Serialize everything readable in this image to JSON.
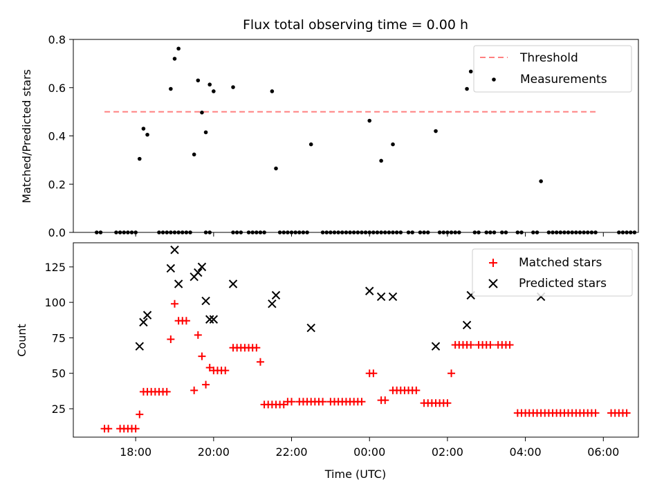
{
  "chart_data": [
    {
      "type": "scatter",
      "title": "Flux total observing time = 0.00 h",
      "ylabel": "Matched/Predicted stars",
      "xlabel": "",
      "ylim": [
        0,
        0.8
      ],
      "yticks": [
        "0.0",
        "0.2",
        "0.4",
        "0.6",
        "0.8"
      ],
      "legend": "top-right",
      "threshold": {
        "name": "Threshold",
        "value": 0.5,
        "x_range": [
          "17:12",
          "05:48"
        ],
        "color": "#ff7f7f"
      },
      "series": [
        {
          "name": "Measurements",
          "color": "#000000",
          "points": [
            [
              "18:06",
              0.305
            ],
            [
              "18:12",
              0.43
            ],
            [
              "18:18",
              0.405
            ],
            [
              "18:54",
              0.595
            ],
            [
              "19:00",
              0.72
            ],
            [
              "19:06",
              0.762
            ],
            [
              "19:30",
              0.323
            ],
            [
              "19:36",
              0.63
            ],
            [
              "19:42",
              0.497
            ],
            [
              "19:48",
              0.415
            ],
            [
              "19:54",
              0.613
            ],
            [
              "20:00",
              0.585
            ],
            [
              "20:30",
              0.602
            ],
            [
              "21:30",
              0.585
            ],
            [
              "21:36",
              0.265
            ],
            [
              "22:30",
              0.365
            ],
            [
              "00:00",
              0.463
            ],
            [
              "00:18",
              0.297
            ],
            [
              "00:36",
              0.365
            ],
            [
              "01:42",
              0.42
            ],
            [
              "02:30",
              0.595
            ],
            [
              "02:36",
              0.667
            ],
            [
              "04:24",
              0.212
            ],
            [
              "17:00",
              0
            ],
            [
              "17:06",
              0
            ],
            [
              "17:30",
              0
            ],
            [
              "17:36",
              0
            ],
            [
              "17:42",
              0
            ],
            [
              "17:48",
              0
            ],
            [
              "17:54",
              0
            ],
            [
              "18:00",
              0
            ],
            [
              "18:36",
              0
            ],
            [
              "18:42",
              0
            ],
            [
              "18:48",
              0
            ],
            [
              "18:54",
              0
            ],
            [
              "19:00",
              0
            ],
            [
              "19:06",
              0
            ],
            [
              "19:12",
              0
            ],
            [
              "19:18",
              0
            ],
            [
              "19:24",
              0
            ],
            [
              "19:48",
              0
            ],
            [
              "19:54",
              0
            ],
            [
              "20:30",
              0
            ],
            [
              "20:36",
              0
            ],
            [
              "20:42",
              0
            ],
            [
              "20:54",
              0
            ],
            [
              "21:00",
              0
            ],
            [
              "21:06",
              0
            ],
            [
              "21:12",
              0
            ],
            [
              "21:18",
              0
            ],
            [
              "21:42",
              0
            ],
            [
              "21:48",
              0
            ],
            [
              "21:54",
              0
            ],
            [
              "22:00",
              0
            ],
            [
              "22:06",
              0
            ],
            [
              "22:12",
              0
            ],
            [
              "22:18",
              0
            ],
            [
              "22:24",
              0
            ],
            [
              "22:48",
              0
            ],
            [
              "22:54",
              0
            ],
            [
              "23:00",
              0
            ],
            [
              "23:06",
              0
            ],
            [
              "23:12",
              0
            ],
            [
              "23:18",
              0
            ],
            [
              "23:24",
              0
            ],
            [
              "23:30",
              0
            ],
            [
              "23:36",
              0
            ],
            [
              "23:42",
              0
            ],
            [
              "23:48",
              0
            ],
            [
              "23:54",
              0
            ],
            [
              "00:00",
              0
            ],
            [
              "00:06",
              0
            ],
            [
              "00:12",
              0
            ],
            [
              "00:18",
              0
            ],
            [
              "00:24",
              0
            ],
            [
              "00:30",
              0
            ],
            [
              "00:36",
              0
            ],
            [
              "00:42",
              0
            ],
            [
              "00:48",
              0
            ],
            [
              "01:00",
              0
            ],
            [
              "01:06",
              0
            ],
            [
              "01:18",
              0
            ],
            [
              "01:24",
              0
            ],
            [
              "01:30",
              0
            ],
            [
              "01:48",
              0
            ],
            [
              "01:54",
              0
            ],
            [
              "02:00",
              0
            ],
            [
              "02:06",
              0
            ],
            [
              "02:12",
              0
            ],
            [
              "02:18",
              0
            ],
            [
              "02:42",
              0
            ],
            [
              "02:48",
              0
            ],
            [
              "03:00",
              0
            ],
            [
              "03:06",
              0
            ],
            [
              "03:12",
              0
            ],
            [
              "03:24",
              0
            ],
            [
              "03:30",
              0
            ],
            [
              "03:48",
              0
            ],
            [
              "03:54",
              0
            ],
            [
              "04:12",
              0
            ],
            [
              "04:18",
              0
            ],
            [
              "04:36",
              0
            ],
            [
              "04:42",
              0
            ],
            [
              "04:48",
              0
            ],
            [
              "04:54",
              0
            ],
            [
              "05:00",
              0
            ],
            [
              "05:06",
              0
            ],
            [
              "05:12",
              0
            ],
            [
              "05:18",
              0
            ],
            [
              "05:24",
              0
            ],
            [
              "05:30",
              0
            ],
            [
              "05:36",
              0
            ],
            [
              "05:42",
              0
            ],
            [
              "05:48",
              0
            ],
            [
              "06:24",
              0
            ],
            [
              "06:30",
              0
            ],
            [
              "06:36",
              0
            ],
            [
              "06:42",
              0
            ],
            [
              "06:48",
              0
            ]
          ]
        }
      ]
    },
    {
      "type": "scatter",
      "title": "",
      "ylabel": "Count",
      "xlabel": "Time (UTC)",
      "ylim": [
        5,
        142
      ],
      "yticks": [
        "25",
        "50",
        "75",
        "100",
        "125"
      ],
      "xticks": [
        "18:00",
        "20:00",
        "22:00",
        "00:00",
        "02:00",
        "04:00",
        "06:00"
      ],
      "xlim": [
        "16:24",
        "06:54"
      ],
      "legend": "top-right",
      "series": [
        {
          "name": "Matched stars",
          "marker": "+",
          "color": "#ff0000",
          "points": [
            [
              "17:12",
              11
            ],
            [
              "17:18",
              11
            ],
            [
              "17:36",
              11
            ],
            [
              "17:42",
              11
            ],
            [
              "17:48",
              11
            ],
            [
              "17:54",
              11
            ],
            [
              "18:00",
              11
            ],
            [
              "18:06",
              21
            ],
            [
              "18:12",
              37
            ],
            [
              "18:18",
              37
            ],
            [
              "18:24",
              37
            ],
            [
              "18:30",
              37
            ],
            [
              "18:36",
              37
            ],
            [
              "18:42",
              37
            ],
            [
              "18:48",
              37
            ],
            [
              "18:54",
              74
            ],
            [
              "19:00",
              99
            ],
            [
              "19:06",
              87
            ],
            [
              "19:12",
              87
            ],
            [
              "19:18",
              87
            ],
            [
              "19:30",
              38
            ],
            [
              "19:36",
              77
            ],
            [
              "19:42",
              62
            ],
            [
              "19:48",
              42
            ],
            [
              "19:54",
              54
            ],
            [
              "20:00",
              52
            ],
            [
              "20:06",
              52
            ],
            [
              "20:12",
              52
            ],
            [
              "20:18",
              52
            ],
            [
              "20:30",
              68
            ],
            [
              "20:36",
              68
            ],
            [
              "20:42",
              68
            ],
            [
              "20:48",
              68
            ],
            [
              "20:54",
              68
            ],
            [
              "21:00",
              68
            ],
            [
              "21:06",
              68
            ],
            [
              "21:12",
              58
            ],
            [
              "21:18",
              28
            ],
            [
              "21:24",
              28
            ],
            [
              "21:30",
              28
            ],
            [
              "21:36",
              28
            ],
            [
              "21:42",
              28
            ],
            [
              "21:48",
              28
            ],
            [
              "21:54",
              30
            ],
            [
              "22:00",
              30
            ],
            [
              "22:12",
              30
            ],
            [
              "22:18",
              30
            ],
            [
              "22:24",
              30
            ],
            [
              "22:30",
              30
            ],
            [
              "22:36",
              30
            ],
            [
              "22:42",
              30
            ],
            [
              "22:48",
              30
            ],
            [
              "23:00",
              30
            ],
            [
              "23:06",
              30
            ],
            [
              "23:12",
              30
            ],
            [
              "23:18",
              30
            ],
            [
              "23:24",
              30
            ],
            [
              "23:30",
              30
            ],
            [
              "23:36",
              30
            ],
            [
              "23:42",
              30
            ],
            [
              "23:48",
              30
            ],
            [
              "00:00",
              50
            ],
            [
              "00:06",
              50
            ],
            [
              "00:18",
              31
            ],
            [
              "00:24",
              31
            ],
            [
              "00:36",
              38
            ],
            [
              "00:42",
              38
            ],
            [
              "00:48",
              38
            ],
            [
              "00:54",
              38
            ],
            [
              "01:00",
              38
            ],
            [
              "01:06",
              38
            ],
            [
              "01:12",
              38
            ],
            [
              "01:24",
              29
            ],
            [
              "01:30",
              29
            ],
            [
              "01:36",
              29
            ],
            [
              "01:42",
              29
            ],
            [
              "01:48",
              29
            ],
            [
              "01:54",
              29
            ],
            [
              "02:00",
              29
            ],
            [
              "02:06",
              50
            ],
            [
              "02:12",
              70
            ],
            [
              "02:18",
              70
            ],
            [
              "02:24",
              70
            ],
            [
              "02:30",
              70
            ],
            [
              "02:36",
              70
            ],
            [
              "02:48",
              70
            ],
            [
              "02:54",
              70
            ],
            [
              "03:00",
              70
            ],
            [
              "03:06",
              70
            ],
            [
              "03:18",
              70
            ],
            [
              "03:24",
              70
            ],
            [
              "03:30",
              70
            ],
            [
              "03:36",
              70
            ],
            [
              "03:48",
              22
            ],
            [
              "03:54",
              22
            ],
            [
              "04:00",
              22
            ],
            [
              "04:06",
              22
            ],
            [
              "04:12",
              22
            ],
            [
              "04:18",
              22
            ],
            [
              "04:24",
              22
            ],
            [
              "04:30",
              22
            ],
            [
              "04:36",
              22
            ],
            [
              "04:42",
              22
            ],
            [
              "04:48",
              22
            ],
            [
              "04:54",
              22
            ],
            [
              "05:00",
              22
            ],
            [
              "05:06",
              22
            ],
            [
              "05:12",
              22
            ],
            [
              "05:18",
              22
            ],
            [
              "05:24",
              22
            ],
            [
              "05:30",
              22
            ],
            [
              "05:36",
              22
            ],
            [
              "05:42",
              22
            ],
            [
              "05:48",
              22
            ],
            [
              "06:12",
              22
            ],
            [
              "06:18",
              22
            ],
            [
              "06:24",
              22
            ],
            [
              "06:30",
              22
            ],
            [
              "06:36",
              22
            ]
          ]
        },
        {
          "name": "Predicted stars",
          "marker": "x",
          "color": "#000000",
          "points": [
            [
              "18:06",
              69
            ],
            [
              "18:12",
              86
            ],
            [
              "18:18",
              91
            ],
            [
              "18:54",
              124
            ],
            [
              "19:00",
              137
            ],
            [
              "19:06",
              113
            ],
            [
              "19:30",
              118
            ],
            [
              "19:36",
              121
            ],
            [
              "19:42",
              125
            ],
            [
              "19:48",
              101
            ],
            [
              "19:54",
              88
            ],
            [
              "20:00",
              88
            ],
            [
              "20:30",
              113
            ],
            [
              "21:30",
              99
            ],
            [
              "21:36",
              105
            ],
            [
              "22:30",
              82
            ],
            [
              "00:00",
              108
            ],
            [
              "00:18",
              104
            ],
            [
              "00:36",
              104
            ],
            [
              "01:42",
              69
            ],
            [
              "02:30",
              84
            ],
            [
              "02:36",
              105
            ],
            [
              "04:24",
              104
            ]
          ]
        }
      ]
    }
  ]
}
